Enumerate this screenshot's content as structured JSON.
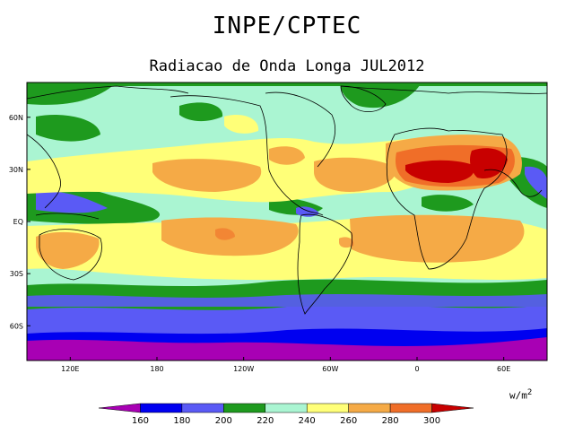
{
  "header": {
    "title": "INPE/CPTEC",
    "subtitle": "Radiacao de Onda Longa JUL2012"
  },
  "map": {
    "lat_labels": [
      "60N",
      "30N",
      "EQ",
      "30S",
      "60S"
    ],
    "lon_labels": [
      "120E",
      "180",
      "120W",
      "60W",
      "0",
      "60E"
    ],
    "lat_range": [
      -80,
      80
    ],
    "lon_range": [
      90,
      450
    ]
  },
  "legend": {
    "levels": [
      "160",
      "180",
      "200",
      "220",
      "240",
      "260",
      "280",
      "300"
    ],
    "colors": [
      "#a800b4",
      "#0000f0",
      "#5a5af5",
      "#1e9a1e",
      "#aaf5d2",
      "#ffff78",
      "#f5aa46",
      "#f06e28",
      "#c80000"
    ],
    "units": "w/m",
    "units_exp": "2"
  }
}
